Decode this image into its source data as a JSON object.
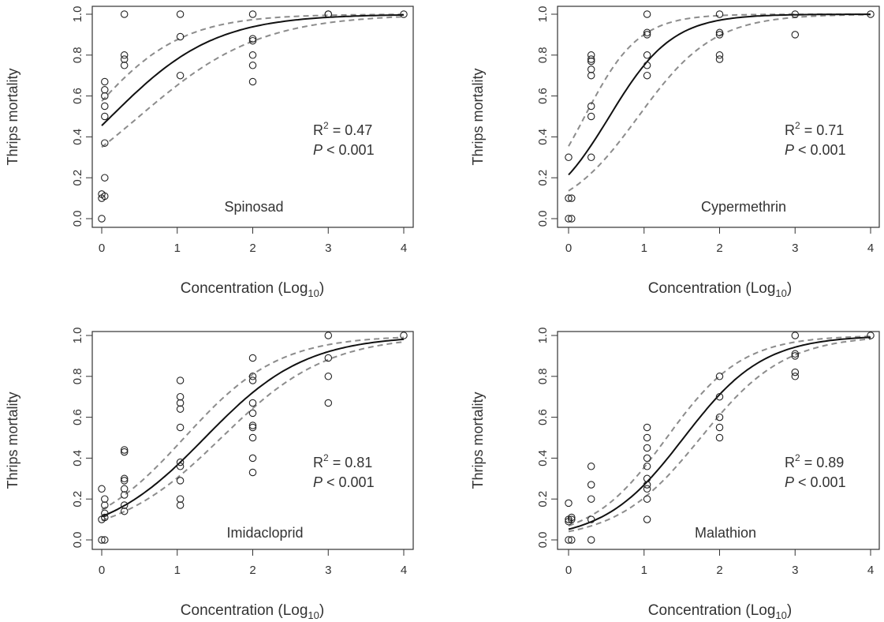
{
  "figure": {
    "xlabel_prefix": "Concentration (Log",
    "xlabel_sub": "10",
    "xlabel_suffix": ")",
    "ylabel": "Thrips mortality"
  },
  "chart_data": [
    {
      "type": "scatter",
      "title": "Spinosad",
      "xlabel": "Concentration (Log10)",
      "ylabel": "Thrips mortality",
      "xlim": [
        0,
        4
      ],
      "ylim": [
        0,
        1
      ],
      "xticks": [
        "0",
        "1",
        "2",
        "3",
        "4"
      ],
      "yticks": [
        "0.0",
        "0.2",
        "0.4",
        "0.6",
        "0.8",
        "1.0"
      ],
      "stat_r2": "0.47",
      "stat_p": "< 0.001",
      "series": [
        {
          "points": [
            [
              0,
              0.0
            ],
            [
              0,
              0.1
            ],
            [
              0,
              0.12
            ],
            [
              0.04,
              0.11
            ],
            [
              0.04,
              0.2
            ],
            [
              0.04,
              0.37
            ],
            [
              0.04,
              0.5
            ],
            [
              0.04,
              0.55
            ],
            [
              0.04,
              0.6
            ],
            [
              0.04,
              0.63
            ],
            [
              0.04,
              0.67
            ],
            [
              0.3,
              0.75
            ],
            [
              0.3,
              0.78
            ],
            [
              0.3,
              0.8
            ],
            [
              0.3,
              1.0
            ],
            [
              1.04,
              0.7
            ],
            [
              1.04,
              0.89
            ],
            [
              1.04,
              1.0
            ],
            [
              2,
              0.67
            ],
            [
              2,
              0.75
            ],
            [
              2,
              0.8
            ],
            [
              2,
              0.87
            ],
            [
              2,
              0.88
            ],
            [
              2,
              1.0
            ],
            [
              3,
              1.0
            ],
            [
              3,
              1.0
            ],
            [
              4,
              1.0
            ]
          ]
        },
        {
          "fit": {
            "a": -0.18,
            "b": 1.45
          }
        },
        {
          "lower": {
            "a": -0.62,
            "b": 1.25
          }
        },
        {
          "upper": {
            "a": 0.3,
            "b": 1.65
          }
        }
      ]
    },
    {
      "type": "scatter",
      "title": "Cypermethrin",
      "xlabel": "Concentration (Log10)",
      "ylabel": "Thrips mortality",
      "xlim": [
        0,
        4
      ],
      "ylim": [
        0,
        1
      ],
      "xticks": [
        "0",
        "1",
        "2",
        "3",
        "4"
      ],
      "yticks": [
        "0.0",
        "0.2",
        "0.4",
        "0.6",
        "0.8",
        "1.0"
      ],
      "stat_r2": "0.71",
      "stat_p": "< 0.001",
      "series": [
        {
          "points": [
            [
              0,
              0.0
            ],
            [
              0,
              0.1
            ],
            [
              0,
              0.3
            ],
            [
              0.04,
              0.0
            ],
            [
              0.04,
              0.1
            ],
            [
              0.3,
              0.3
            ],
            [
              0.3,
              0.5
            ],
            [
              0.3,
              0.55
            ],
            [
              0.3,
              0.7
            ],
            [
              0.3,
              0.73
            ],
            [
              0.3,
              0.77
            ],
            [
              0.3,
              0.78
            ],
            [
              0.3,
              0.8
            ],
            [
              1.04,
              0.7
            ],
            [
              1.04,
              0.75
            ],
            [
              1.04,
              0.8
            ],
            [
              1.04,
              0.9
            ],
            [
              1.04,
              0.91
            ],
            [
              1.04,
              1.0
            ],
            [
              2,
              0.78
            ],
            [
              2,
              0.8
            ],
            [
              2,
              0.9
            ],
            [
              2,
              0.91
            ],
            [
              2,
              1.0
            ],
            [
              3,
              0.9
            ],
            [
              3,
              1.0
            ],
            [
              4,
              1.0
            ]
          ]
        },
        {
          "fit": {
            "a": -1.3,
            "b": 2.4
          }
        },
        {
          "lower": {
            "a": -1.85,
            "b": 2.0
          }
        },
        {
          "upper": {
            "a": -0.6,
            "b": 2.8
          }
        }
      ]
    },
    {
      "type": "scatter",
      "title": "Imidacloprid",
      "xlabel": "Concentration (Log10)",
      "ylabel": "Thrips mortality",
      "xlim": [
        0,
        4
      ],
      "ylim": [
        0,
        1
      ],
      "xticks": [
        "0",
        "1",
        "2",
        "3",
        "4"
      ],
      "yticks": [
        "0.0",
        "0.2",
        "0.4",
        "0.6",
        "0.8",
        "1.0"
      ],
      "stat_r2": "0.81",
      "stat_p": "< 0.001",
      "series": [
        {
          "points": [
            [
              0,
              0.0
            ],
            [
              0,
              0.1
            ],
            [
              0,
              0.25
            ],
            [
              0.04,
              0.0
            ],
            [
              0.04,
              0.11
            ],
            [
              0.04,
              0.13
            ],
            [
              0.04,
              0.17
            ],
            [
              0.04,
              0.2
            ],
            [
              0.3,
              0.14
            ],
            [
              0.3,
              0.17
            ],
            [
              0.3,
              0.22
            ],
            [
              0.3,
              0.25
            ],
            [
              0.3,
              0.29
            ],
            [
              0.3,
              0.3
            ],
            [
              0.3,
              0.43
            ],
            [
              0.3,
              0.44
            ],
            [
              1.04,
              0.17
            ],
            [
              1.04,
              0.2
            ],
            [
              1.04,
              0.29
            ],
            [
              1.04,
              0.36
            ],
            [
              1.04,
              0.38
            ],
            [
              1.04,
              0.55
            ],
            [
              1.04,
              0.64
            ],
            [
              1.04,
              0.67
            ],
            [
              1.04,
              0.7
            ],
            [
              1.04,
              0.78
            ],
            [
              2,
              0.33
            ],
            [
              2,
              0.4
            ],
            [
              2,
              0.5
            ],
            [
              2,
              0.55
            ],
            [
              2,
              0.56
            ],
            [
              2,
              0.62
            ],
            [
              2,
              0.67
            ],
            [
              2,
              0.78
            ],
            [
              2,
              0.8
            ],
            [
              2,
              0.89
            ],
            [
              3,
              0.67
            ],
            [
              3,
              0.8
            ],
            [
              3,
              0.89
            ],
            [
              3,
              1.0
            ],
            [
              4,
              1.0
            ]
          ]
        },
        {
          "fit": {
            "a": -2.05,
            "b": 1.5
          }
        },
        {
          "lower": {
            "a": -2.25,
            "b": 1.42
          }
        },
        {
          "upper": {
            "a": -1.75,
            "b": 1.6
          }
        }
      ]
    },
    {
      "type": "scatter",
      "title": "Malathion",
      "xlabel": "Concentration (Log10)",
      "ylabel": "Thrips mortality",
      "xlim": [
        0,
        4
      ],
      "ylim": [
        0,
        1
      ],
      "xticks": [
        "0",
        "1",
        "2",
        "3",
        "4"
      ],
      "yticks": [
        "0.0",
        "0.2",
        "0.4",
        "0.6",
        "0.8",
        "1.0"
      ],
      "stat_r2": "0.89",
      "stat_p": "< 0.001",
      "series": [
        {
          "points": [
            [
              0,
              0.0
            ],
            [
              0,
              0.09
            ],
            [
              0,
              0.1
            ],
            [
              0,
              0.18
            ],
            [
              0.04,
              0.0
            ],
            [
              0.04,
              0.1
            ],
            [
              0.04,
              0.11
            ],
            [
              0.3,
              0.0
            ],
            [
              0.3,
              0.1
            ],
            [
              0.3,
              0.2
            ],
            [
              0.3,
              0.27
            ],
            [
              0.3,
              0.36
            ],
            [
              1.04,
              0.1
            ],
            [
              1.04,
              0.2
            ],
            [
              1.04,
              0.25
            ],
            [
              1.04,
              0.27
            ],
            [
              1.04,
              0.3
            ],
            [
              1.04,
              0.36
            ],
            [
              1.04,
              0.4
            ],
            [
              1.04,
              0.45
            ],
            [
              1.04,
              0.5
            ],
            [
              1.04,
              0.55
            ],
            [
              2,
              0.5
            ],
            [
              2,
              0.55
            ],
            [
              2,
              0.6
            ],
            [
              2,
              0.7
            ],
            [
              2,
              0.8
            ],
            [
              3,
              0.8
            ],
            [
              3,
              0.82
            ],
            [
              3,
              0.9
            ],
            [
              3,
              0.91
            ],
            [
              3,
              1.0
            ],
            [
              4,
              1.0
            ]
          ]
        },
        {
          "fit": {
            "a": -2.9,
            "b": 1.9
          }
        },
        {
          "lower": {
            "a": -3.15,
            "b": 1.8
          }
        },
        {
          "upper": {
            "a": -2.6,
            "b": 2.0
          }
        }
      ]
    }
  ]
}
